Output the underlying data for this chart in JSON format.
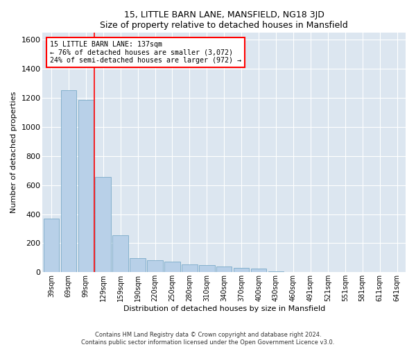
{
  "title": "15, LITTLE BARN LANE, MANSFIELD, NG18 3JD",
  "subtitle": "Size of property relative to detached houses in Mansfield",
  "xlabel": "Distribution of detached houses by size in Mansfield",
  "ylabel": "Number of detached properties",
  "footnote": "Contains HM Land Registry data © Crown copyright and database right 2024.\nContains public sector information licensed under the Open Government Licence v3.0.",
  "bar_color": "#b8d0e8",
  "bar_edge_color": "#7aaac8",
  "background_color": "#dce6f0",
  "categories": [
    "39sqm",
    "69sqm",
    "99sqm",
    "129sqm",
    "159sqm",
    "190sqm",
    "220sqm",
    "250sqm",
    "280sqm",
    "310sqm",
    "340sqm",
    "370sqm",
    "400sqm",
    "430sqm",
    "460sqm",
    "491sqm",
    "521sqm",
    "551sqm",
    "581sqm",
    "611sqm",
    "641sqm"
  ],
  "values": [
    370,
    1255,
    1185,
    655,
    255,
    98,
    82,
    72,
    55,
    48,
    38,
    30,
    25,
    5,
    0,
    0,
    0,
    0,
    0,
    0,
    0
  ],
  "ylim": [
    0,
    1650
  ],
  "yticks": [
    0,
    200,
    400,
    600,
    800,
    1000,
    1200,
    1400,
    1600
  ],
  "property_line_label": "15 LITTLE BARN LANE: 137sqm",
  "annotation_line1": "← 76% of detached houses are smaller (3,072)",
  "annotation_line2": "24% of semi-detached houses are larger (972) →",
  "box_color": "white",
  "box_edge_color": "red",
  "red_line_index": 2.5
}
